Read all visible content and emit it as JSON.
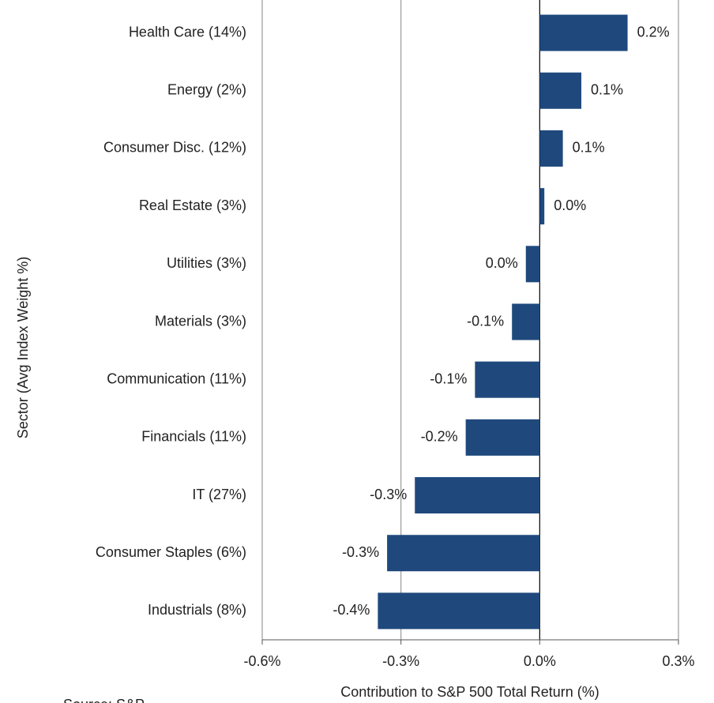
{
  "chart_data": {
    "type": "bar",
    "orientation": "horizontal",
    "x_label": "Contribution to S&P 500  Total Return (%)",
    "y_label": "Sector (Avg Index Weight %)",
    "note": "Source: S&P",
    "categories": [
      "Health Care (14%)",
      "Energy (2%)",
      "Consumer Disc. (12%)",
      "Real Estate (3%)",
      "Utilities (3%)",
      "Materials (3%)",
      "Communication (11%)",
      "Financials (11%)",
      "IT (27%)",
      "Consumer Staples (6%)",
      "Industrials (8%)"
    ],
    "values": [
      0.19,
      0.09,
      0.05,
      0.01,
      -0.03,
      -0.06,
      -0.14,
      -0.16,
      -0.27,
      -0.33,
      -0.35
    ],
    "value_labels": [
      "0.2%",
      "0.1%",
      "0.1%",
      "0.0%",
      "0.0%",
      "-0.1%",
      "-0.1%",
      "-0.2%",
      "-0.3%",
      "-0.3%",
      "-0.4%"
    ],
    "color": "#1f497d",
    "xlim": [
      -0.6,
      0.3
    ],
    "xticks": [
      {
        "value": -0.6,
        "label": "-0.6%"
      },
      {
        "value": -0.3,
        "label": "-0.3%"
      },
      {
        "value": 0,
        "label": "0.0%"
      },
      {
        "value": 0.3,
        "label": "0.3%"
      }
    ],
    "grid": true
  }
}
